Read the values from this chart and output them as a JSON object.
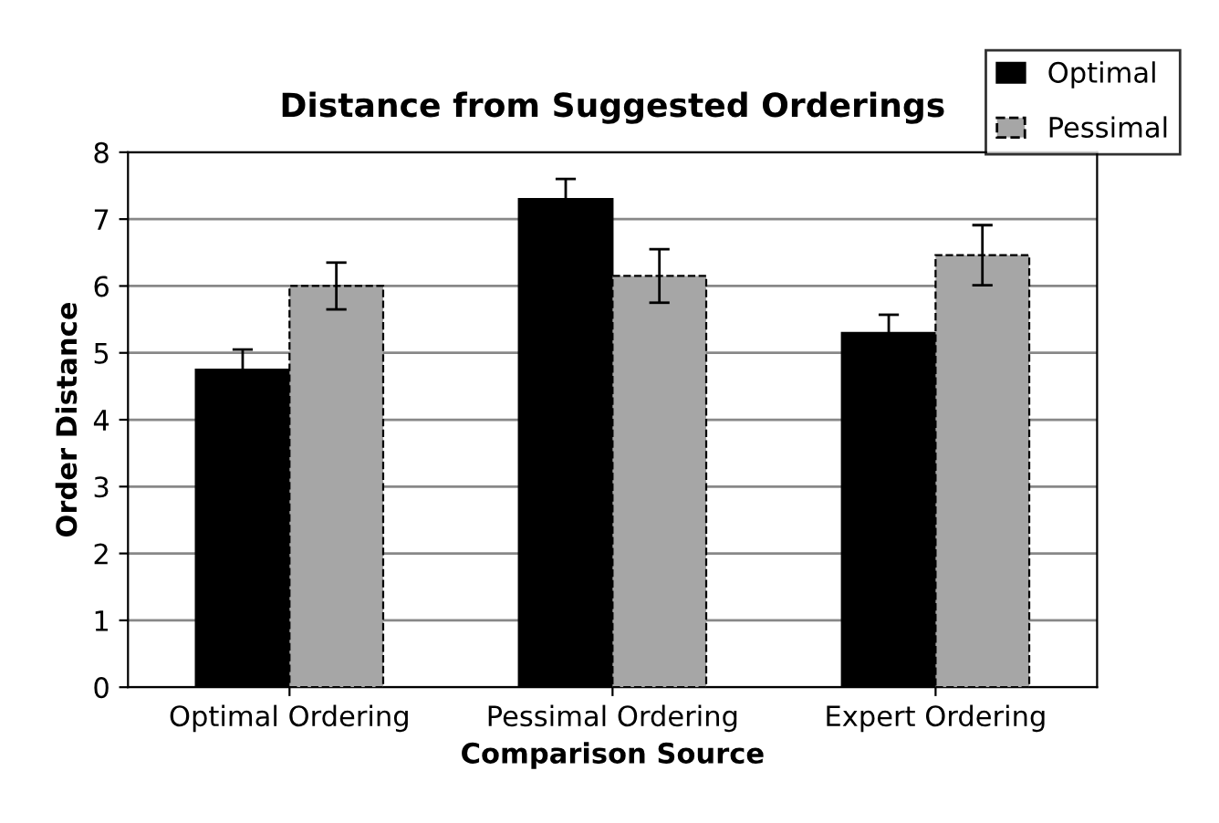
{
  "chart_data": {
    "type": "bar",
    "title": "Distance from Suggested Orderings",
    "xlabel": "Comparison Source",
    "ylabel": "Order Distance",
    "categories": [
      "Optimal Ordering",
      "Pessimal Ordering",
      "Expert Ordering"
    ],
    "series": [
      {
        "name": "Optimal",
        "color": "#000000",
        "values": [
          4.75,
          7.3,
          5.3
        ],
        "errors": [
          0.3,
          0.3,
          0.27
        ]
      },
      {
        "name": "Pessimal",
        "color": "#a6a6a6",
        "values": [
          6.0,
          6.15,
          6.46
        ],
        "errors": [
          0.35,
          0.4,
          0.45
        ]
      }
    ],
    "ylim": [
      0,
      8
    ],
    "yticks": [
      0,
      1,
      2,
      3,
      4,
      5,
      6,
      7,
      8
    ],
    "grid": "y",
    "legend": "top right"
  }
}
